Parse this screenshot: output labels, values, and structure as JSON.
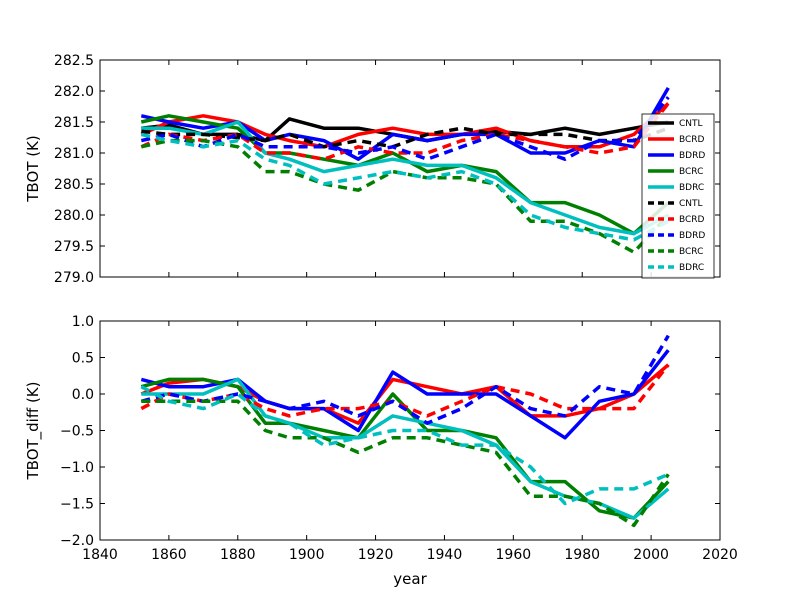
{
  "chart_data": [
    {
      "type": "line",
      "xlabel": "",
      "ylabel": "TBOT (K)",
      "xlim": [
        1840,
        2020
      ],
      "ylim": [
        279.0,
        282.5
      ],
      "yticks": [
        279.0,
        279.5,
        280.0,
        280.5,
        281.0,
        281.5,
        282.0,
        282.5
      ],
      "yticklabels": [
        "279.0",
        "279.5",
        "280.0",
        "280.5",
        "281.0",
        "281.5",
        "282.0",
        "282.5"
      ],
      "legend_position": "right",
      "series": [
        {
          "name": "CNTL",
          "color": "#000000",
          "style": "solid",
          "x": [
            1852,
            1860,
            1870,
            1880,
            1888,
            1895,
            1905,
            1915,
            1925,
            1935,
            1945,
            1955,
            1965,
            1975,
            1985,
            1995,
            2005
          ],
          "values": [
            281.4,
            281.45,
            281.3,
            281.3,
            281.2,
            281.55,
            281.4,
            281.4,
            281.3,
            281.2,
            281.3,
            281.35,
            281.3,
            281.4,
            281.3,
            281.4,
            281.5
          ]
        },
        {
          "name": "BCRD",
          "color": "#ff0000",
          "style": "solid",
          "x": [
            1852,
            1860,
            1870,
            1880,
            1888,
            1895,
            1905,
            1915,
            1925,
            1935,
            1945,
            1955,
            1965,
            1975,
            1985,
            1995,
            2005
          ],
          "values": [
            281.3,
            281.5,
            281.6,
            281.5,
            281.3,
            281.2,
            281.1,
            281.3,
            281.4,
            281.3,
            281.3,
            281.4,
            281.2,
            281.1,
            281.1,
            281.3,
            281.8
          ]
        },
        {
          "name": "BDRD",
          "color": "#0000ff",
          "style": "solid",
          "x": [
            1852,
            1860,
            1870,
            1880,
            1888,
            1895,
            1905,
            1915,
            1925,
            1935,
            1945,
            1955,
            1965,
            1975,
            1985,
            1995,
            2005
          ],
          "values": [
            281.6,
            281.5,
            281.4,
            281.5,
            281.2,
            281.3,
            281.2,
            280.9,
            281.3,
            281.2,
            281.3,
            281.3,
            281.0,
            281.0,
            281.2,
            281.1,
            282.05
          ]
        },
        {
          "name": "BCRC",
          "color": "#007f00",
          "style": "solid",
          "x": [
            1852,
            1860,
            1870,
            1880,
            1888,
            1895,
            1905,
            1915,
            1925,
            1935,
            1945,
            1955,
            1965,
            1975,
            1985,
            1995,
            2005
          ],
          "values": [
            281.5,
            281.6,
            281.5,
            281.4,
            281.0,
            281.0,
            280.9,
            280.8,
            281.0,
            280.7,
            280.8,
            280.7,
            280.2,
            280.2,
            280.0,
            279.7,
            280.2
          ]
        },
        {
          "name": "BDRC",
          "color": "#00bfbf",
          "style": "solid",
          "x": [
            1852,
            1860,
            1870,
            1880,
            1888,
            1895,
            1905,
            1915,
            1925,
            1935,
            1945,
            1955,
            1965,
            1975,
            1985,
            1995,
            2005
          ],
          "values": [
            281.4,
            281.4,
            281.3,
            281.5,
            281.0,
            280.9,
            280.7,
            280.8,
            280.9,
            280.8,
            280.8,
            280.6,
            280.2,
            280.0,
            279.8,
            279.7,
            280.0
          ]
        },
        {
          "name": "CNTL",
          "color": "#000000",
          "style": "dashed",
          "x": [
            1852,
            1860,
            1870,
            1880,
            1888,
            1895,
            1905,
            1915,
            1925,
            1935,
            1945,
            1955,
            1965,
            1975,
            1985,
            1995,
            2005
          ],
          "values": [
            281.35,
            281.3,
            281.3,
            281.25,
            281.2,
            281.3,
            281.1,
            281.2,
            281.1,
            281.3,
            281.4,
            281.3,
            281.3,
            281.3,
            281.2,
            281.2,
            281.4
          ]
        },
        {
          "name": "BCRD",
          "color": "#ff0000",
          "style": "dashed",
          "x": [
            1852,
            1860,
            1870,
            1880,
            1888,
            1895,
            1905,
            1915,
            1925,
            1935,
            1945,
            1955,
            1965,
            1975,
            1985,
            1995,
            2005
          ],
          "values": [
            281.1,
            281.3,
            281.2,
            281.3,
            281.0,
            281.0,
            280.9,
            281.1,
            281.0,
            281.0,
            281.2,
            281.3,
            281.2,
            281.1,
            281.0,
            281.1,
            281.8
          ]
        },
        {
          "name": "BDRD",
          "color": "#0000ff",
          "style": "dashed",
          "x": [
            1852,
            1860,
            1870,
            1880,
            1888,
            1895,
            1905,
            1915,
            1925,
            1935,
            1945,
            1955,
            1965,
            1975,
            1985,
            1995,
            2005
          ],
          "values": [
            281.2,
            281.3,
            281.1,
            281.3,
            281.1,
            281.1,
            281.1,
            281.0,
            281.1,
            280.9,
            281.1,
            281.3,
            281.1,
            280.9,
            281.2,
            281.2,
            281.9
          ]
        },
        {
          "name": "BCRC",
          "color": "#007f00",
          "style": "dashed",
          "x": [
            1852,
            1860,
            1870,
            1880,
            1888,
            1895,
            1905,
            1915,
            1925,
            1935,
            1945,
            1955,
            1965,
            1975,
            1985,
            1995,
            2005
          ],
          "values": [
            281.1,
            281.2,
            281.2,
            281.1,
            280.7,
            280.7,
            280.5,
            280.4,
            280.7,
            280.6,
            280.6,
            280.5,
            279.9,
            279.9,
            279.7,
            279.4,
            280.0
          ]
        },
        {
          "name": "BDRC",
          "color": "#00bfbf",
          "style": "dashed",
          "x": [
            1852,
            1860,
            1870,
            1880,
            1888,
            1895,
            1905,
            1915,
            1925,
            1935,
            1945,
            1955,
            1965,
            1975,
            1985,
            1995,
            2005
          ],
          "values": [
            281.3,
            281.2,
            281.1,
            281.2,
            280.9,
            280.8,
            280.5,
            280.6,
            280.7,
            280.6,
            280.7,
            280.5,
            280.0,
            279.8,
            279.7,
            279.6,
            279.9
          ]
        }
      ]
    },
    {
      "type": "line",
      "xlabel": "year",
      "ylabel": "TBOT_diff (K)",
      "xlim": [
        1840,
        2020
      ],
      "ylim": [
        -2.0,
        1.0
      ],
      "xticks": [
        1840,
        1860,
        1880,
        1900,
        1920,
        1940,
        1960,
        1980,
        2000,
        2020
      ],
      "xticklabels": [
        "1840",
        "1860",
        "1880",
        "1900",
        "1920",
        "1940",
        "1960",
        "1980",
        "2000",
        "2020"
      ],
      "yticks": [
        -2.0,
        -1.5,
        -1.0,
        -0.5,
        0.0,
        0.5,
        1.0
      ],
      "yticklabels": [
        "−2.0",
        "−1.5",
        "−1.0",
        "−0.5",
        "0.0",
        "0.5",
        "1.0"
      ],
      "series": [
        {
          "name": "BCRD",
          "color": "#ff0000",
          "style": "solid",
          "x": [
            1852,
            1860,
            1870,
            1880,
            1888,
            1895,
            1905,
            1915,
            1925,
            1935,
            1945,
            1955,
            1965,
            1975,
            1985,
            1995,
            2005
          ],
          "values": [
            0.0,
            0.15,
            0.2,
            0.1,
            -0.1,
            -0.2,
            -0.2,
            -0.4,
            0.2,
            0.1,
            0.0,
            0.1,
            -0.3,
            -0.3,
            -0.2,
            0.0,
            0.4
          ]
        },
        {
          "name": "BDRD",
          "color": "#0000ff",
          "style": "solid",
          "x": [
            1852,
            1860,
            1870,
            1880,
            1888,
            1895,
            1905,
            1915,
            1925,
            1935,
            1945,
            1955,
            1965,
            1975,
            1985,
            1995,
            2005
          ],
          "values": [
            0.2,
            0.1,
            0.1,
            0.2,
            -0.1,
            -0.2,
            -0.2,
            -0.5,
            0.3,
            0.0,
            0.0,
            0.0,
            -0.3,
            -0.6,
            -0.1,
            0.0,
            0.6
          ]
        },
        {
          "name": "BCRC",
          "color": "#007f00",
          "style": "solid",
          "x": [
            1852,
            1860,
            1870,
            1880,
            1888,
            1895,
            1905,
            1915,
            1925,
            1935,
            1945,
            1955,
            1965,
            1975,
            1985,
            1995,
            2005
          ],
          "values": [
            0.1,
            0.2,
            0.2,
            0.1,
            -0.4,
            -0.4,
            -0.5,
            -0.6,
            0.0,
            -0.5,
            -0.5,
            -0.6,
            -1.2,
            -1.2,
            -1.6,
            -1.7,
            -1.2
          ]
        },
        {
          "name": "BDRC",
          "color": "#00bfbf",
          "style": "solid",
          "x": [
            1852,
            1860,
            1870,
            1880,
            1888,
            1895,
            1905,
            1915,
            1925,
            1935,
            1945,
            1955,
            1965,
            1975,
            1985,
            1995,
            2005
          ],
          "values": [
            0.0,
            0.0,
            0.0,
            0.2,
            -0.3,
            -0.4,
            -0.6,
            -0.6,
            -0.3,
            -0.4,
            -0.5,
            -0.7,
            -1.2,
            -1.4,
            -1.5,
            -1.7,
            -1.3
          ]
        },
        {
          "name": "BCRD",
          "color": "#ff0000",
          "style": "dashed",
          "x": [
            1852,
            1860,
            1870,
            1880,
            1888,
            1895,
            1905,
            1915,
            1925,
            1935,
            1945,
            1955,
            1965,
            1975,
            1985,
            1995,
            2005
          ],
          "values": [
            -0.2,
            0.0,
            -0.1,
            0.0,
            -0.2,
            -0.3,
            -0.2,
            -0.2,
            -0.1,
            -0.3,
            -0.1,
            0.1,
            0.0,
            -0.2,
            -0.2,
            -0.2,
            0.4
          ]
        },
        {
          "name": "BDRD",
          "color": "#0000ff",
          "style": "dashed",
          "x": [
            1852,
            1860,
            1870,
            1880,
            1888,
            1895,
            1905,
            1915,
            1925,
            1935,
            1945,
            1955,
            1965,
            1975,
            1985,
            1995,
            2005
          ],
          "values": [
            -0.1,
            0.0,
            -0.1,
            0.0,
            -0.1,
            -0.2,
            -0.1,
            -0.3,
            -0.1,
            -0.4,
            -0.2,
            0.1,
            -0.2,
            -0.3,
            0.1,
            0.0,
            0.8
          ]
        },
        {
          "name": "BCRC",
          "color": "#007f00",
          "style": "dashed",
          "x": [
            1852,
            1860,
            1870,
            1880,
            1888,
            1895,
            1905,
            1915,
            1925,
            1935,
            1945,
            1955,
            1965,
            1975,
            1985,
            1995,
            2005
          ],
          "values": [
            -0.1,
            -0.1,
            -0.1,
            -0.1,
            -0.5,
            -0.6,
            -0.6,
            -0.8,
            -0.6,
            -0.6,
            -0.7,
            -0.8,
            -1.4,
            -1.4,
            -1.5,
            -1.8,
            -1.1
          ]
        },
        {
          "name": "BDRC",
          "color": "#00bfbf",
          "style": "dashed",
          "x": [
            1852,
            1860,
            1870,
            1880,
            1888,
            1895,
            1905,
            1915,
            1925,
            1935,
            1945,
            1955,
            1965,
            1975,
            1985,
            1995,
            2005
          ],
          "values": [
            0.1,
            -0.1,
            -0.2,
            0.0,
            -0.3,
            -0.4,
            -0.7,
            -0.6,
            -0.5,
            -0.5,
            -0.7,
            -0.7,
            -1.0,
            -1.5,
            -1.3,
            -1.3,
            -1.1
          ]
        }
      ]
    }
  ]
}
